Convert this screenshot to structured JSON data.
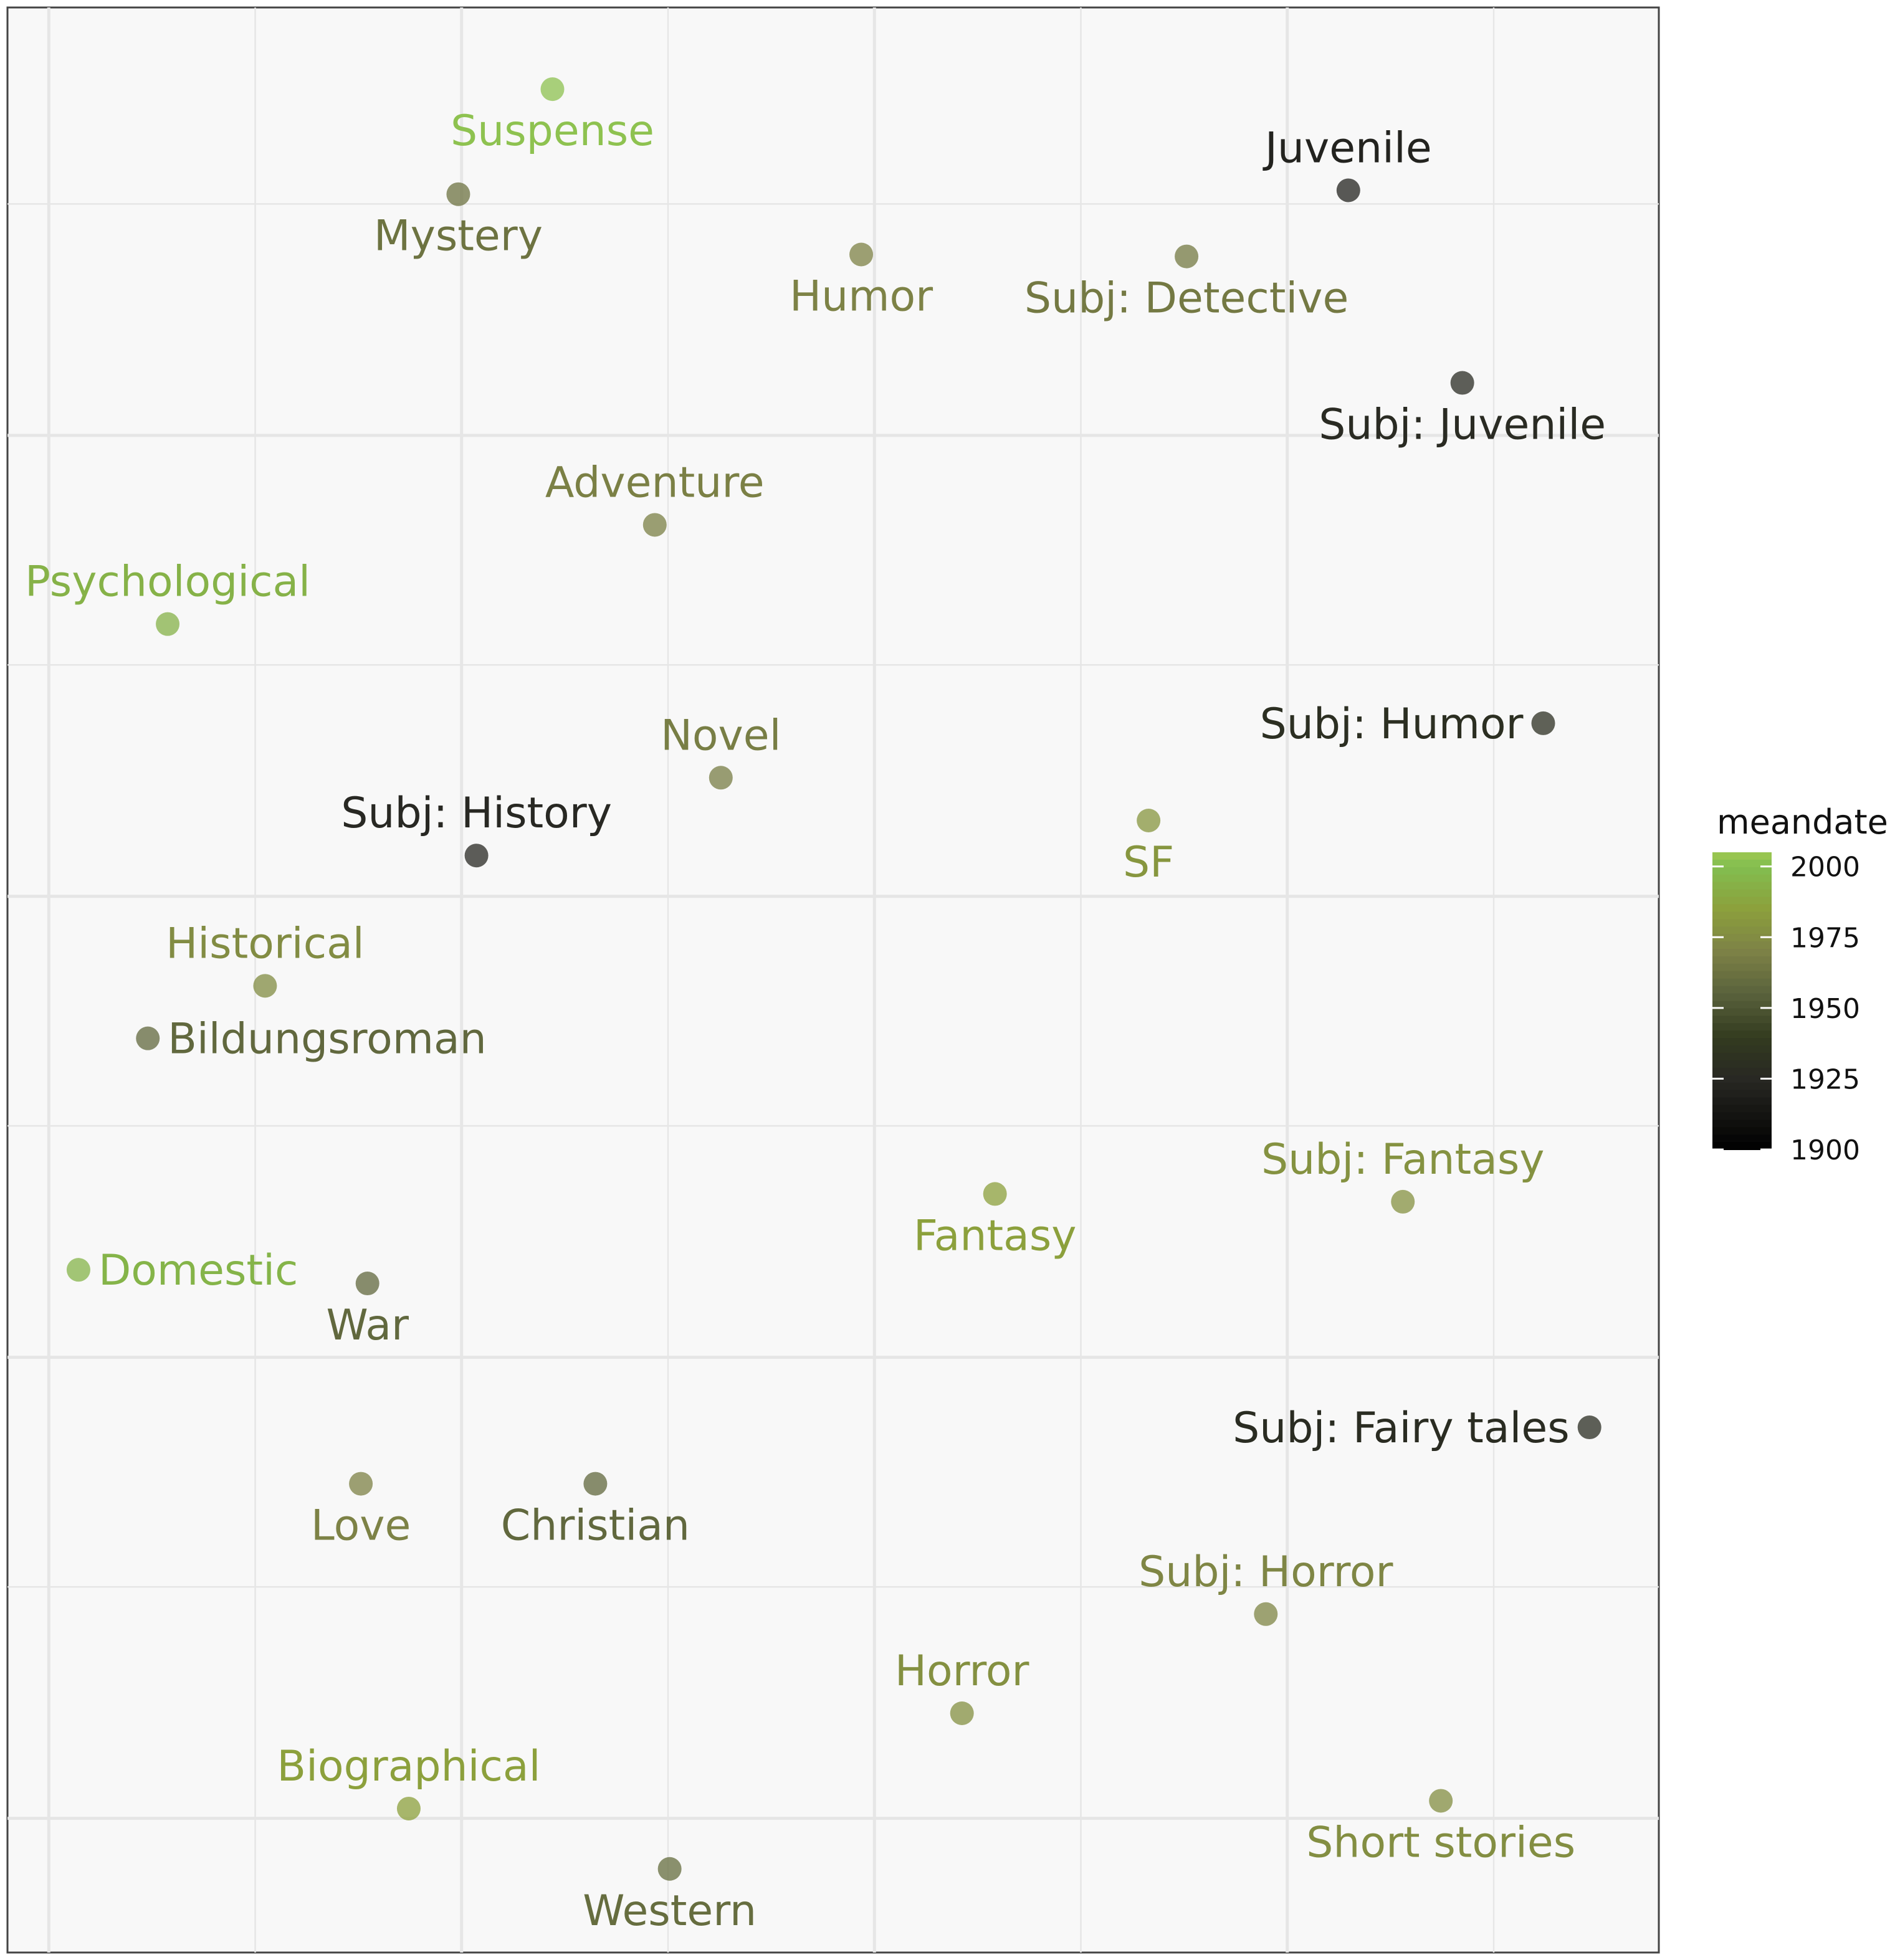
{
  "chart_data": {
    "type": "scatter",
    "title": "",
    "xlabel": "",
    "ylabel": "",
    "xlim": [
      0,
      100
    ],
    "ylim": [
      0,
      100
    ],
    "grid": true,
    "axes_ticks_shown": false,
    "legend": {
      "title": "meandate",
      "placement": "right",
      "scale_min": 1900,
      "scale_max": 2005,
      "ticks": [
        2000,
        1975,
        1950,
        1925,
        1900
      ],
      "tick_labels": [
        "2000",
        "1975",
        "1950",
        "1925",
        "1900"
      ]
    },
    "points": [
      {
        "label": "Suspense",
        "x": 33.0,
        "y": 95.8,
        "meandate": 2002,
        "label_pos": "below"
      },
      {
        "label": "Mystery",
        "x": 27.3,
        "y": 90.4,
        "meandate": 1963,
        "label_pos": "below"
      },
      {
        "label": "Juvenile",
        "x": 81.2,
        "y": 90.6,
        "meandate": 1922,
        "label_pos": "above"
      },
      {
        "label": "Humor",
        "x": 51.7,
        "y": 87.3,
        "meandate": 1970,
        "label_pos": "below"
      },
      {
        "label": "Subj: Detective",
        "x": 71.4,
        "y": 87.2,
        "meandate": 1966,
        "label_pos": "below"
      },
      {
        "label": "Subj: Juvenile",
        "x": 88.1,
        "y": 80.7,
        "meandate": 1927,
        "label_pos": "below"
      },
      {
        "label": "Adventure",
        "x": 39.2,
        "y": 73.4,
        "meandate": 1969,
        "label_pos": "above"
      },
      {
        "label": "Psychological",
        "x": 9.7,
        "y": 68.3,
        "meandate": 1994,
        "label_pos": "above"
      },
      {
        "label": "Subj: Humor",
        "x": 93.0,
        "y": 63.2,
        "meandate": 1930,
        "label_pos": "left"
      },
      {
        "label": "Novel",
        "x": 43.2,
        "y": 60.4,
        "meandate": 1968,
        "label_pos": "above"
      },
      {
        "label": "SF",
        "x": 69.1,
        "y": 58.2,
        "meandate": 1980,
        "label_pos": "below"
      },
      {
        "label": "Subj: History",
        "x": 28.4,
        "y": 56.4,
        "meandate": 1925,
        "label_pos": "above"
      },
      {
        "label": "Historical",
        "x": 15.6,
        "y": 49.7,
        "meandate": 1975,
        "label_pos": "above"
      },
      {
        "label": "Bildungsroman",
        "x": 8.5,
        "y": 47.0,
        "meandate": 1958,
        "label_pos": "right"
      },
      {
        "label": "Subj: Fantasy",
        "x": 84.5,
        "y": 38.6,
        "meandate": 1978,
        "label_pos": "above"
      },
      {
        "label": "Fantasy",
        "x": 59.8,
        "y": 39.0,
        "meandate": 1985,
        "label_pos": "below"
      },
      {
        "label": "Domestic",
        "x": 4.3,
        "y": 35.1,
        "meandate": 1995,
        "label_pos": "right"
      },
      {
        "label": "War",
        "x": 21.8,
        "y": 34.4,
        "meandate": 1958,
        "label_pos": "below"
      },
      {
        "label": "Subj: Fairy tales",
        "x": 95.8,
        "y": 27.0,
        "meandate": 1928,
        "label_pos": "left"
      },
      {
        "label": "Love",
        "x": 21.4,
        "y": 24.1,
        "meandate": 1970,
        "label_pos": "below"
      },
      {
        "label": "Christian",
        "x": 35.6,
        "y": 24.1,
        "meandate": 1958,
        "label_pos": "below"
      },
      {
        "label": "Subj: Horror",
        "x": 76.2,
        "y": 17.4,
        "meandate": 1972,
        "label_pos": "above"
      },
      {
        "label": "Horror",
        "x": 57.8,
        "y": 12.3,
        "meandate": 1977,
        "label_pos": "above"
      },
      {
        "label": "Short stories",
        "x": 86.8,
        "y": 7.8,
        "meandate": 1976,
        "label_pos": "below"
      },
      {
        "label": "Biographical",
        "x": 24.3,
        "y": 7.4,
        "meandate": 1985,
        "label_pos": "above"
      },
      {
        "label": "Western",
        "x": 40.1,
        "y": 4.3,
        "meandate": 1960,
        "label_pos": "below"
      }
    ]
  }
}
